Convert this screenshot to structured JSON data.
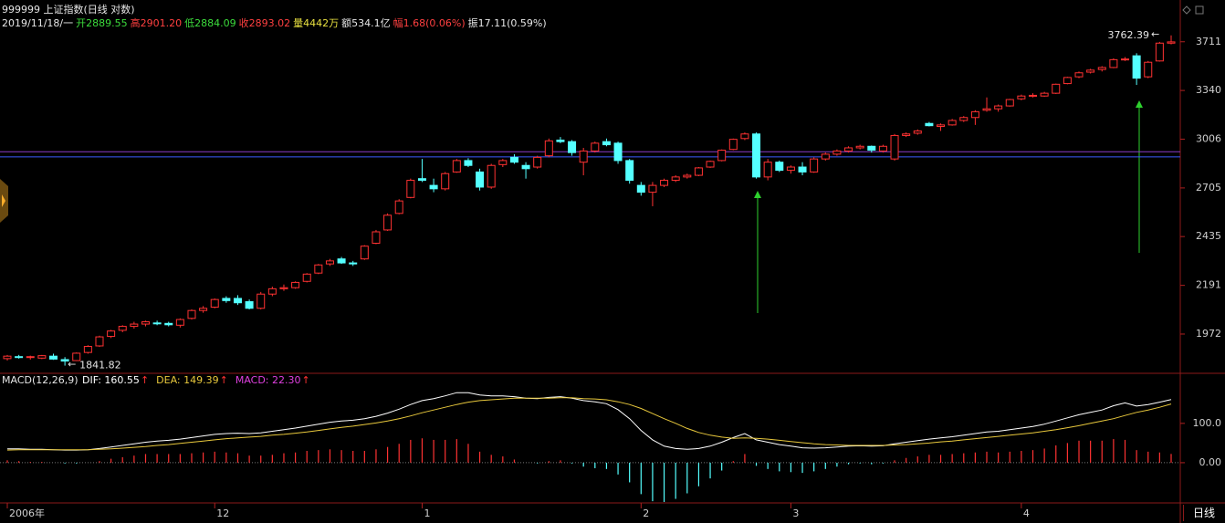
{
  "header": {
    "title": "999999 上证指数(日线 对数)",
    "date": "2019/11/18/一",
    "open": "开2889.55",
    "high": "高2901.20",
    "low": "低2884.09",
    "close": "收2893.02",
    "volume": "量4442万",
    "amount": "额534.1亿",
    "change": "幅1.68(0.06%)",
    "amplitude": "振17.11(0.59%)",
    "period_button": "日线"
  },
  "chart_data": [
    {
      "type": "candlestick",
      "log_scale": true,
      "up_color": "#ff3232",
      "down_color": "#54ffff",
      "ylim": [
        1815,
        3920
      ],
      "yticks": [
        1972,
        2191,
        2435,
        2705,
        3006,
        3340,
        3711
      ],
      "hlines": [
        {
          "value": 2925,
          "color": "#8a3cc8"
        },
        {
          "value": 2893.02,
          "color": "#3c5cff"
        }
      ],
      "min_arrow": "←",
      "max_arrow": "←",
      "min_index": 5,
      "max_index": 101,
      "categories": [
        "2006年",
        null,
        null,
        null,
        null,
        null,
        null,
        null,
        null,
        null,
        null,
        null,
        null,
        null,
        null,
        null,
        null,
        null,
        "12",
        null,
        null,
        null,
        null,
        null,
        null,
        null,
        null,
        null,
        null,
        null,
        null,
        null,
        null,
        null,
        null,
        null,
        "1",
        null,
        null,
        null,
        null,
        null,
        null,
        null,
        null,
        null,
        null,
        null,
        null,
        null,
        null,
        null,
        null,
        null,
        null,
        "2",
        null,
        null,
        null,
        null,
        null,
        null,
        null,
        null,
        null,
        null,
        null,
        null,
        "3",
        null,
        null,
        null,
        null,
        null,
        null,
        null,
        null,
        null,
        null,
        null,
        null,
        null,
        null,
        null,
        null,
        null,
        null,
        null,
        "4",
        null,
        null,
        null,
        null,
        null,
        null,
        null,
        null,
        null,
        null,
        null,
        null,
        null
      ],
      "ohlc": [
        [
          1870,
          1885,
          1862,
          1880
        ],
        [
          1878,
          1885,
          1870,
          1876
        ],
        [
          1875,
          1882,
          1866,
          1878
        ],
        [
          1872,
          1885,
          1868,
          1882
        ],
        [
          1880,
          1890,
          1865,
          1868
        ],
        [
          1866,
          1876,
          1841.82,
          1860
        ],
        [
          1862,
          1895,
          1860,
          1892
        ],
        [
          1895,
          1925,
          1890,
          1920
        ],
        [
          1922,
          1965,
          1918,
          1960
        ],
        [
          1962,
          1990,
          1955,
          1985
        ],
        [
          1988,
          2010,
          1980,
          2005
        ],
        [
          2005,
          2025,
          1995,
          2015
        ],
        [
          2015,
          2030,
          2005,
          2025
        ],
        [
          2020,
          2030,
          2010,
          2018
        ],
        [
          2018,
          2025,
          2005,
          2012
        ],
        [
          2010,
          2040,
          2000,
          2035
        ],
        [
          2040,
          2080,
          2035,
          2075
        ],
        [
          2075,
          2095,
          2065,
          2085
        ],
        [
          2090,
          2130,
          2085,
          2125
        ],
        [
          2130,
          2140,
          2110,
          2120
        ],
        [
          2130,
          2145,
          2100,
          2110
        ],
        [
          2115,
          2125,
          2080,
          2085
        ],
        [
          2085,
          2160,
          2080,
          2150
        ],
        [
          2150,
          2185,
          2140,
          2175
        ],
        [
          2175,
          2195,
          2165,
          2180
        ],
        [
          2180,
          2210,
          2175,
          2205
        ],
        [
          2210,
          2250,
          2205,
          2245
        ],
        [
          2250,
          2295,
          2245,
          2290
        ],
        [
          2295,
          2320,
          2285,
          2310
        ],
        [
          2320,
          2330,
          2295,
          2300
        ],
        [
          2300,
          2310,
          2285,
          2295
        ],
        [
          2320,
          2390,
          2315,
          2385
        ],
        [
          2400,
          2470,
          2395,
          2460
        ],
        [
          2470,
          2560,
          2465,
          2550
        ],
        [
          2560,
          2640,
          2555,
          2630
        ],
        [
          2650,
          2760,
          2645,
          2750
        ],
        [
          2760,
          2880,
          2740,
          2750
        ],
        [
          2720,
          2760,
          2680,
          2700
        ],
        [
          2700,
          2800,
          2690,
          2790
        ],
        [
          2800,
          2880,
          2795,
          2870
        ],
        [
          2870,
          2885,
          2830,
          2840
        ],
        [
          2800,
          2820,
          2690,
          2710
        ],
        [
          2710,
          2850,
          2700,
          2840
        ],
        [
          2845,
          2880,
          2830,
          2870
        ],
        [
          2890,
          2910,
          2850,
          2860
        ],
        [
          2840,
          2860,
          2760,
          2820
        ],
        [
          2830,
          2900,
          2820,
          2890
        ],
        [
          2900,
          3010,
          2890,
          2995
        ],
        [
          3000,
          3020,
          2980,
          2990
        ],
        [
          2990,
          3000,
          2900,
          2920
        ],
        [
          2860,
          2950,
          2780,
          2930
        ],
        [
          2930,
          2990,
          2920,
          2980
        ],
        [
          2990,
          3010,
          2960,
          2970
        ],
        [
          2980,
          2990,
          2850,
          2870
        ],
        [
          2870,
          2880,
          2730,
          2750
        ],
        [
          2720,
          2740,
          2660,
          2680
        ],
        [
          2680,
          2740,
          2600,
          2720
        ],
        [
          2720,
          2760,
          2710,
          2750
        ],
        [
          2750,
          2780,
          2740,
          2770
        ],
        [
          2770,
          2790,
          2760,
          2780
        ],
        [
          2780,
          2830,
          2775,
          2825
        ],
        [
          2830,
          2870,
          2825,
          2865
        ],
        [
          2870,
          2940,
          2865,
          2935
        ],
        [
          2940,
          3010,
          2935,
          3005
        ],
        [
          3010,
          3050,
          3000,
          3040
        ],
        [
          3040,
          3050,
          2760,
          2770
        ],
        [
          2770,
          2880,
          2750,
          2860
        ],
        [
          2860,
          2870,
          2800,
          2810
        ],
        [
          2810,
          2840,
          2790,
          2830
        ],
        [
          2830,
          2860,
          2780,
          2800
        ],
        [
          2800,
          2890,
          2795,
          2880
        ],
        [
          2880,
          2920,
          2870,
          2910
        ],
        [
          2910,
          2940,
          2900,
          2930
        ],
        [
          2930,
          2960,
          2920,
          2950
        ],
        [
          2950,
          2970,
          2940,
          2960
        ],
        [
          2960,
          2965,
          2920,
          2935
        ],
        [
          2930,
          2970,
          2920,
          2960
        ],
        [
          2880,
          3040,
          2870,
          3030
        ],
        [
          3030,
          3050,
          3020,
          3040
        ],
        [
          3045,
          3070,
          3035,
          3060
        ],
        [
          3110,
          3120,
          3090,
          3095
        ],
        [
          3090,
          3110,
          3060,
          3100
        ],
        [
          3100,
          3140,
          3095,
          3130
        ],
        [
          3130,
          3160,
          3120,
          3150
        ],
        [
          3150,
          3200,
          3100,
          3190
        ],
        [
          3200,
          3290,
          3190,
          3210
        ],
        [
          3210,
          3240,
          3190,
          3230
        ],
        [
          3230,
          3280,
          3225,
          3275
        ],
        [
          3280,
          3310,
          3270,
          3300
        ],
        [
          3300,
          3320,
          3290,
          3305
        ],
        [
          3300,
          3330,
          3295,
          3320
        ],
        [
          3320,
          3390,
          3315,
          3385
        ],
        [
          3390,
          3440,
          3385,
          3435
        ],
        [
          3440,
          3480,
          3430,
          3470
        ],
        [
          3475,
          3500,
          3465,
          3490
        ],
        [
          3495,
          3520,
          3480,
          3510
        ],
        [
          3510,
          3580,
          3505,
          3570
        ],
        [
          3570,
          3590,
          3560,
          3575
        ],
        [
          3600,
          3620,
          3380,
          3430
        ],
        [
          3440,
          3560,
          3430,
          3550
        ],
        [
          3560,
          3710,
          3555,
          3700
        ],
        [
          3700,
          3762.39,
          3690,
          3710
        ]
      ]
    },
    {
      "type": "macd",
      "title": "MACD(12,26,9)",
      "legend_arrow": "↑",
      "ylim": [
        -100,
        225
      ],
      "yticks": [
        {
          "value": 0,
          "label": "0.00"
        },
        {
          "value": 100,
          "label": "100.0"
        }
      ],
      "up_color": "#ff3232",
      "down_color": "#54ffff",
      "series": [
        {
          "name": "DIF: 160.55",
          "color": "#ffffff",
          "values": [
            35,
            35,
            34,
            34,
            33,
            32,
            32,
            33,
            36,
            40,
            44,
            48,
            52,
            55,
            57,
            60,
            64,
            68,
            72,
            74,
            75,
            74,
            76,
            80,
            84,
            88,
            93,
            98,
            103,
            106,
            108,
            112,
            118,
            126,
            136,
            148,
            158,
            163,
            170,
            178,
            178,
            172,
            170,
            170,
            168,
            164,
            163,
            166,
            168,
            164,
            158,
            155,
            150,
            135,
            112,
            82,
            58,
            42,
            36,
            34,
            36,
            42,
            52,
            64,
            74,
            58,
            52,
            46,
            42,
            38,
            37,
            38,
            40,
            42,
            43,
            42,
            43,
            48,
            52,
            56,
            60,
            63,
            66,
            70,
            74,
            78,
            80,
            84,
            88,
            92,
            98,
            106,
            114,
            122,
            128,
            134,
            145,
            152,
            144,
            148,
            154,
            160.55
          ]
        },
        {
          "name": "DEA: 149.39",
          "color": "#e8c83c",
          "values": [
            32,
            33,
            33,
            33,
            33,
            33,
            33,
            33,
            34,
            35,
            37,
            39,
            41,
            44,
            46,
            49,
            52,
            55,
            58,
            61,
            63,
            65,
            67,
            70,
            72,
            75,
            78,
            82,
            86,
            90,
            93,
            97,
            101,
            106,
            112,
            119,
            127,
            134,
            141,
            148,
            154,
            158,
            160,
            162,
            164,
            164,
            164,
            164,
            165,
            165,
            163,
            162,
            160,
            155,
            148,
            138,
            125,
            112,
            100,
            87,
            77,
            70,
            65,
            62,
            63,
            62,
            60,
            57,
            54,
            51,
            48,
            46,
            45,
            44,
            44,
            44,
            44,
            45,
            46,
            48,
            50,
            53,
            55,
            58,
            61,
            64,
            67,
            70,
            73,
            76,
            80,
            84,
            89,
            94,
            100,
            106,
            112,
            120,
            128,
            134,
            141,
            149.39
          ]
        },
        {
          "name": "MACD: 22.30",
          "color": "#e040e0",
          "bars": true,
          "values": [
            6,
            4,
            2,
            2,
            0,
            -2,
            -2,
            0,
            4,
            10,
            14,
            18,
            22,
            22,
            22,
            22,
            24,
            26,
            28,
            26,
            24,
            18,
            18,
            20,
            24,
            26,
            30,
            32,
            34,
            32,
            30,
            30,
            34,
            40,
            48,
            58,
            62,
            58,
            58,
            60,
            48,
            28,
            20,
            16,
            8,
            0,
            -2,
            4,
            6,
            -2,
            -10,
            -14,
            -16,
            -30,
            -50,
            -80,
            -98,
            -100,
            -92,
            -78,
            -60,
            -40,
            -20,
            4,
            22,
            -8,
            -16,
            -22,
            -24,
            -26,
            -22,
            -16,
            -10,
            -4,
            -2,
            -4,
            -2,
            6,
            12,
            16,
            20,
            20,
            22,
            24,
            26,
            28,
            26,
            28,
            30,
            32,
            36,
            44,
            50,
            56,
            56,
            56,
            60,
            58,
            32,
            28,
            26,
            22.3
          ]
        }
      ]
    }
  ]
}
